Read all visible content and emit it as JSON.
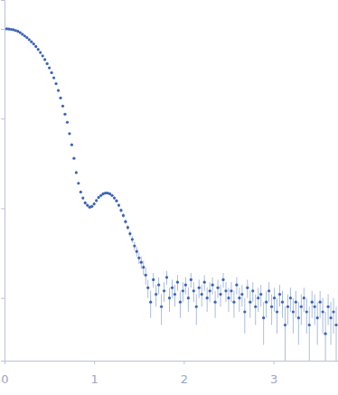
{
  "chart_data": {
    "type": "scatter",
    "log": "y",
    "tick_labels": "x",
    "xlim": [
      0,
      3.72
    ],
    "ylim": [
      0.0002,
      2.1
    ],
    "xticks": [
      0,
      1,
      2,
      3
    ],
    "yticks": [
      0.001,
      0.01,
      0.1,
      1
    ],
    "x": [
      0.025,
      0.05,
      0.075,
      0.1,
      0.125,
      0.15,
      0.175,
      0.2,
      0.225,
      0.25,
      0.275,
      0.3,
      0.325,
      0.35,
      0.375,
      0.4,
      0.425,
      0.45,
      0.475,
      0.5,
      0.525,
      0.55,
      0.575,
      0.6,
      0.625,
      0.65,
      0.675,
      0.7,
      0.725,
      0.75,
      0.775,
      0.8,
      0.825,
      0.85,
      0.875,
      0.9,
      0.925,
      0.95,
      0.975,
      1.0,
      1.025,
      1.05,
      1.075,
      1.1,
      1.125,
      1.15,
      1.175,
      1.2,
      1.225,
      1.25,
      1.275,
      1.3,
      1.325,
      1.35,
      1.375,
      1.4,
      1.425,
      1.45,
      1.475,
      1.5,
      1.525,
      1.55,
      1.575,
      1.6,
      1.63,
      1.66,
      1.69,
      1.72,
      1.75,
      1.78,
      1.81,
      1.84,
      1.87,
      1.9,
      1.93,
      1.96,
      1.99,
      2.02,
      2.05,
      2.08,
      2.11,
      2.14,
      2.17,
      2.2,
      2.23,
      2.26,
      2.29,
      2.32,
      2.35,
      2.38,
      2.41,
      2.44,
      2.47,
      2.5,
      2.53,
      2.56,
      2.59,
      2.62,
      2.65,
      2.68,
      2.71,
      2.74,
      2.77,
      2.8,
      2.83,
      2.86,
      2.89,
      2.92,
      2.95,
      2.98,
      3.01,
      3.04,
      3.07,
      3.1,
      3.13,
      3.16,
      3.19,
      3.22,
      3.25,
      3.28,
      3.31,
      3.34,
      3.37,
      3.4,
      3.43,
      3.46,
      3.49,
      3.52,
      3.55,
      3.58,
      3.61,
      3.64,
      3.67,
      3.7
    ],
    "series": [
      {
        "color": "#3a63b8",
        "marker": "circle",
        "values": [
          1.0,
          0.995,
          0.988,
          0.977,
          0.96,
          0.94,
          0.91,
          0.87,
          0.835,
          0.8,
          0.76,
          0.72,
          0.68,
          0.636,
          0.59,
          0.546,
          0.5,
          0.455,
          0.41,
          0.368,
          0.325,
          0.285,
          0.245,
          0.206,
          0.17,
          0.138,
          0.112,
          0.091,
          0.068,
          0.051,
          0.036,
          0.025,
          0.019,
          0.0152,
          0.013,
          0.0115,
          0.0108,
          0.0103,
          0.0105,
          0.0112,
          0.0122,
          0.0132,
          0.0139,
          0.0145,
          0.0148,
          0.0148,
          0.0145,
          0.0139,
          0.013,
          0.0121,
          0.0108,
          0.0095,
          0.0083,
          0.0071,
          0.0061,
          0.0052,
          0.0045,
          0.0038,
          0.0033,
          0.0028,
          0.0025,
          0.0022,
          0.0018,
          0.0013,
          0.0009,
          0.0016,
          0.0011,
          0.0014,
          0.0008,
          0.0012,
          0.0017,
          0.001,
          0.0013,
          0.0011,
          0.0015,
          0.0009,
          0.0012,
          0.0014,
          0.001,
          0.0016,
          0.0012,
          0.0008,
          0.0013,
          0.0011,
          0.0015,
          0.001,
          0.0012,
          0.0014,
          0.0009,
          0.0013,
          0.0011,
          0.0016,
          0.0012,
          0.001,
          0.0012,
          0.0009,
          0.0014,
          0.001,
          0.0011,
          0.0007,
          0.0013,
          0.0009,
          0.0012,
          0.0008,
          0.001,
          0.0011,
          0.0006,
          0.0009,
          0.0012,
          0.0008,
          0.001,
          0.0007,
          0.0011,
          0.0009,
          0.0005,
          0.0008,
          0.001,
          0.0007,
          0.0009,
          0.0006,
          0.0008,
          0.001,
          0.0007,
          0.0005,
          0.0009,
          0.0008,
          0.0006,
          0.0009,
          0.0007,
          0.0004,
          0.0008,
          0.0006,
          0.0007,
          0.0005
        ],
        "errors": [
          0.015,
          0.015,
          0.015,
          0.015,
          0.014,
          0.014,
          0.014,
          0.013,
          0.013,
          0.012,
          0.011,
          0.011,
          0.01,
          0.01,
          0.009,
          0.008,
          0.008,
          0.007,
          0.006,
          0.006,
          0.005,
          0.004,
          0.004,
          0.003,
          0.003,
          0.002,
          0.002,
          0.0015,
          0.0012,
          0.001,
          0.0008,
          0.0006,
          0.0005,
          0.0005,
          0.0005,
          0.0005,
          0.0005,
          0.0005,
          0.0005,
          0.0005,
          0.0005,
          0.0005,
          0.0005,
          0.0005,
          0.0005,
          0.0005,
          0.0005,
          0.0005,
          0.0005,
          0.0005,
          0.0005,
          0.0005,
          0.0005,
          0.0004,
          0.0004,
          0.0004,
          0.0004,
          0.0004,
          0.0004,
          0.0004,
          0.0004,
          0.0004,
          0.0004,
          0.0003,
          0.0003,
          0.0003,
          0.0003,
          0.0003,
          0.0003,
          0.0003,
          0.0003,
          0.0003,
          0.0003,
          0.0003,
          0.0003,
          0.0003,
          0.0003,
          0.0003,
          0.0003,
          0.0003,
          0.0003,
          0.0003,
          0.0003,
          0.0003,
          0.0003,
          0.0003,
          0.0003,
          0.0003,
          0.0003,
          0.0003,
          0.0003,
          0.0003,
          0.0003,
          0.0003,
          0.0003,
          0.0003,
          0.0003,
          0.0003,
          0.0003,
          0.0003,
          0.0003,
          0.0003,
          0.0003,
          0.0003,
          0.0003,
          0.0003,
          0.0003,
          0.0003,
          0.0003,
          0.0003,
          0.0003,
          0.0003,
          0.0003,
          0.0003,
          0.0003,
          0.0003,
          0.0003,
          0.0003,
          0.0003,
          0.0003,
          0.0003,
          0.0003,
          0.0003,
          0.0003,
          0.0003,
          0.0003,
          0.0003,
          0.0003,
          0.0003,
          0.0003,
          0.0003,
          0.0003,
          0.0003,
          0.0003
        ]
      }
    ]
  }
}
